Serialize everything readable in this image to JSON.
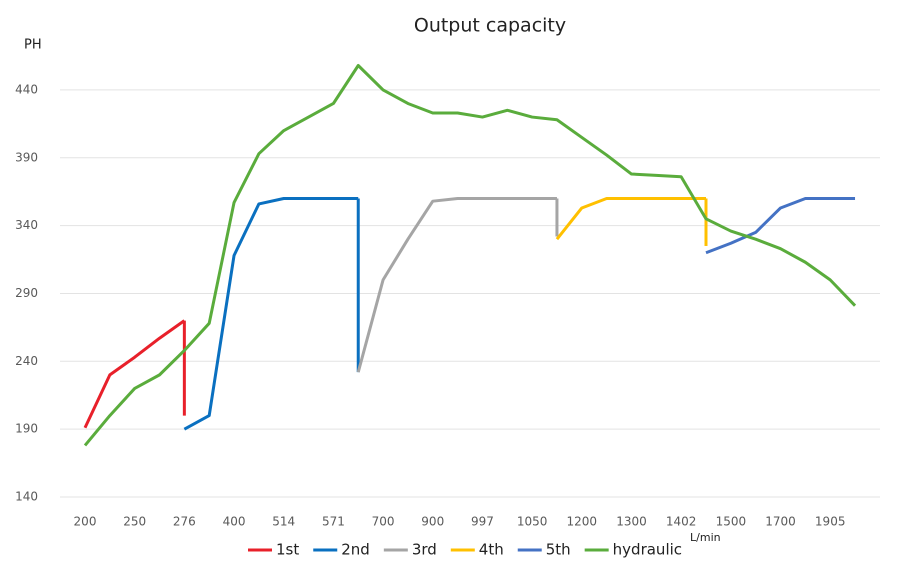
{
  "chart_data": {
    "type": "line",
    "title": "Output capacity",
    "y_label": "PH",
    "x_label": "L/min",
    "categories": [
      "200",
      null,
      "250",
      null,
      "276",
      null,
      "400",
      null,
      "514",
      null,
      "571",
      null,
      "700",
      null,
      "900",
      null,
      "997",
      null,
      "1050",
      null,
      "1200",
      null,
      "1300",
      null,
      "1402",
      null,
      "1500",
      null,
      "1700",
      null,
      "1905",
      null
    ],
    "series": [
      {
        "name": "1st",
        "color": "#e8202a",
        "values": [
          191,
          230,
          243,
          257,
          270,
          null,
          null,
          null,
          null,
          null,
          null,
          null,
          null,
          null,
          null,
          null,
          null,
          null,
          null,
          null,
          null,
          null,
          null,
          null,
          null,
          null,
          null,
          null,
          null,
          null,
          null,
          null
        ],
        "drop_to": 200
      },
      {
        "name": "2nd",
        "color": "#0a70c0",
        "values": [
          null,
          null,
          null,
          null,
          190,
          200,
          318,
          356,
          360,
          360,
          360,
          360,
          null,
          null,
          null,
          null,
          null,
          null,
          null,
          null,
          null,
          null,
          null,
          null,
          null,
          null,
          null,
          null,
          null,
          null,
          null,
          null
        ],
        "drop_to": 232
      },
      {
        "name": "3rd",
        "color": "#a5a5a5",
        "values": [
          null,
          null,
          null,
          null,
          null,
          null,
          null,
          null,
          null,
          null,
          null,
          232,
          300,
          330,
          358,
          360,
          360,
          360,
          360,
          360,
          null,
          null,
          null,
          null,
          null,
          null,
          null,
          null,
          null,
          null,
          null,
          null
        ],
        "drop_to": 332
      },
      {
        "name": "4th",
        "color": "#ffc000",
        "values": [
          null,
          null,
          null,
          null,
          null,
          null,
          null,
          null,
          null,
          null,
          null,
          null,
          null,
          null,
          null,
          null,
          null,
          null,
          null,
          330,
          353,
          360,
          360,
          360,
          360,
          360,
          null,
          null,
          null,
          null,
          null,
          null
        ],
        "drop_to": 325
      },
      {
        "name": "5th",
        "color": "#4472c4",
        "values": [
          null,
          null,
          null,
          null,
          null,
          null,
          null,
          null,
          null,
          null,
          null,
          null,
          null,
          null,
          null,
          null,
          null,
          null,
          null,
          null,
          null,
          null,
          null,
          null,
          null,
          320,
          327,
          335,
          353,
          360,
          360,
          360
        ]
      },
      {
        "name": "hydraulic",
        "color": "#5aac3c",
        "values": [
          178,
          200,
          220,
          230,
          248,
          268,
          357,
          393,
          410,
          420,
          430,
          458,
          440,
          430,
          423,
          423,
          420,
          425,
          420,
          418,
          405,
          392,
          378,
          377,
          376,
          345,
          336,
          330,
          323,
          313,
          300,
          281
        ]
      }
    ],
    "ylim": [
      140,
      465
    ],
    "yticks": [
      140,
      190,
      240,
      290,
      340,
      390,
      440
    ],
    "grid": true
  }
}
